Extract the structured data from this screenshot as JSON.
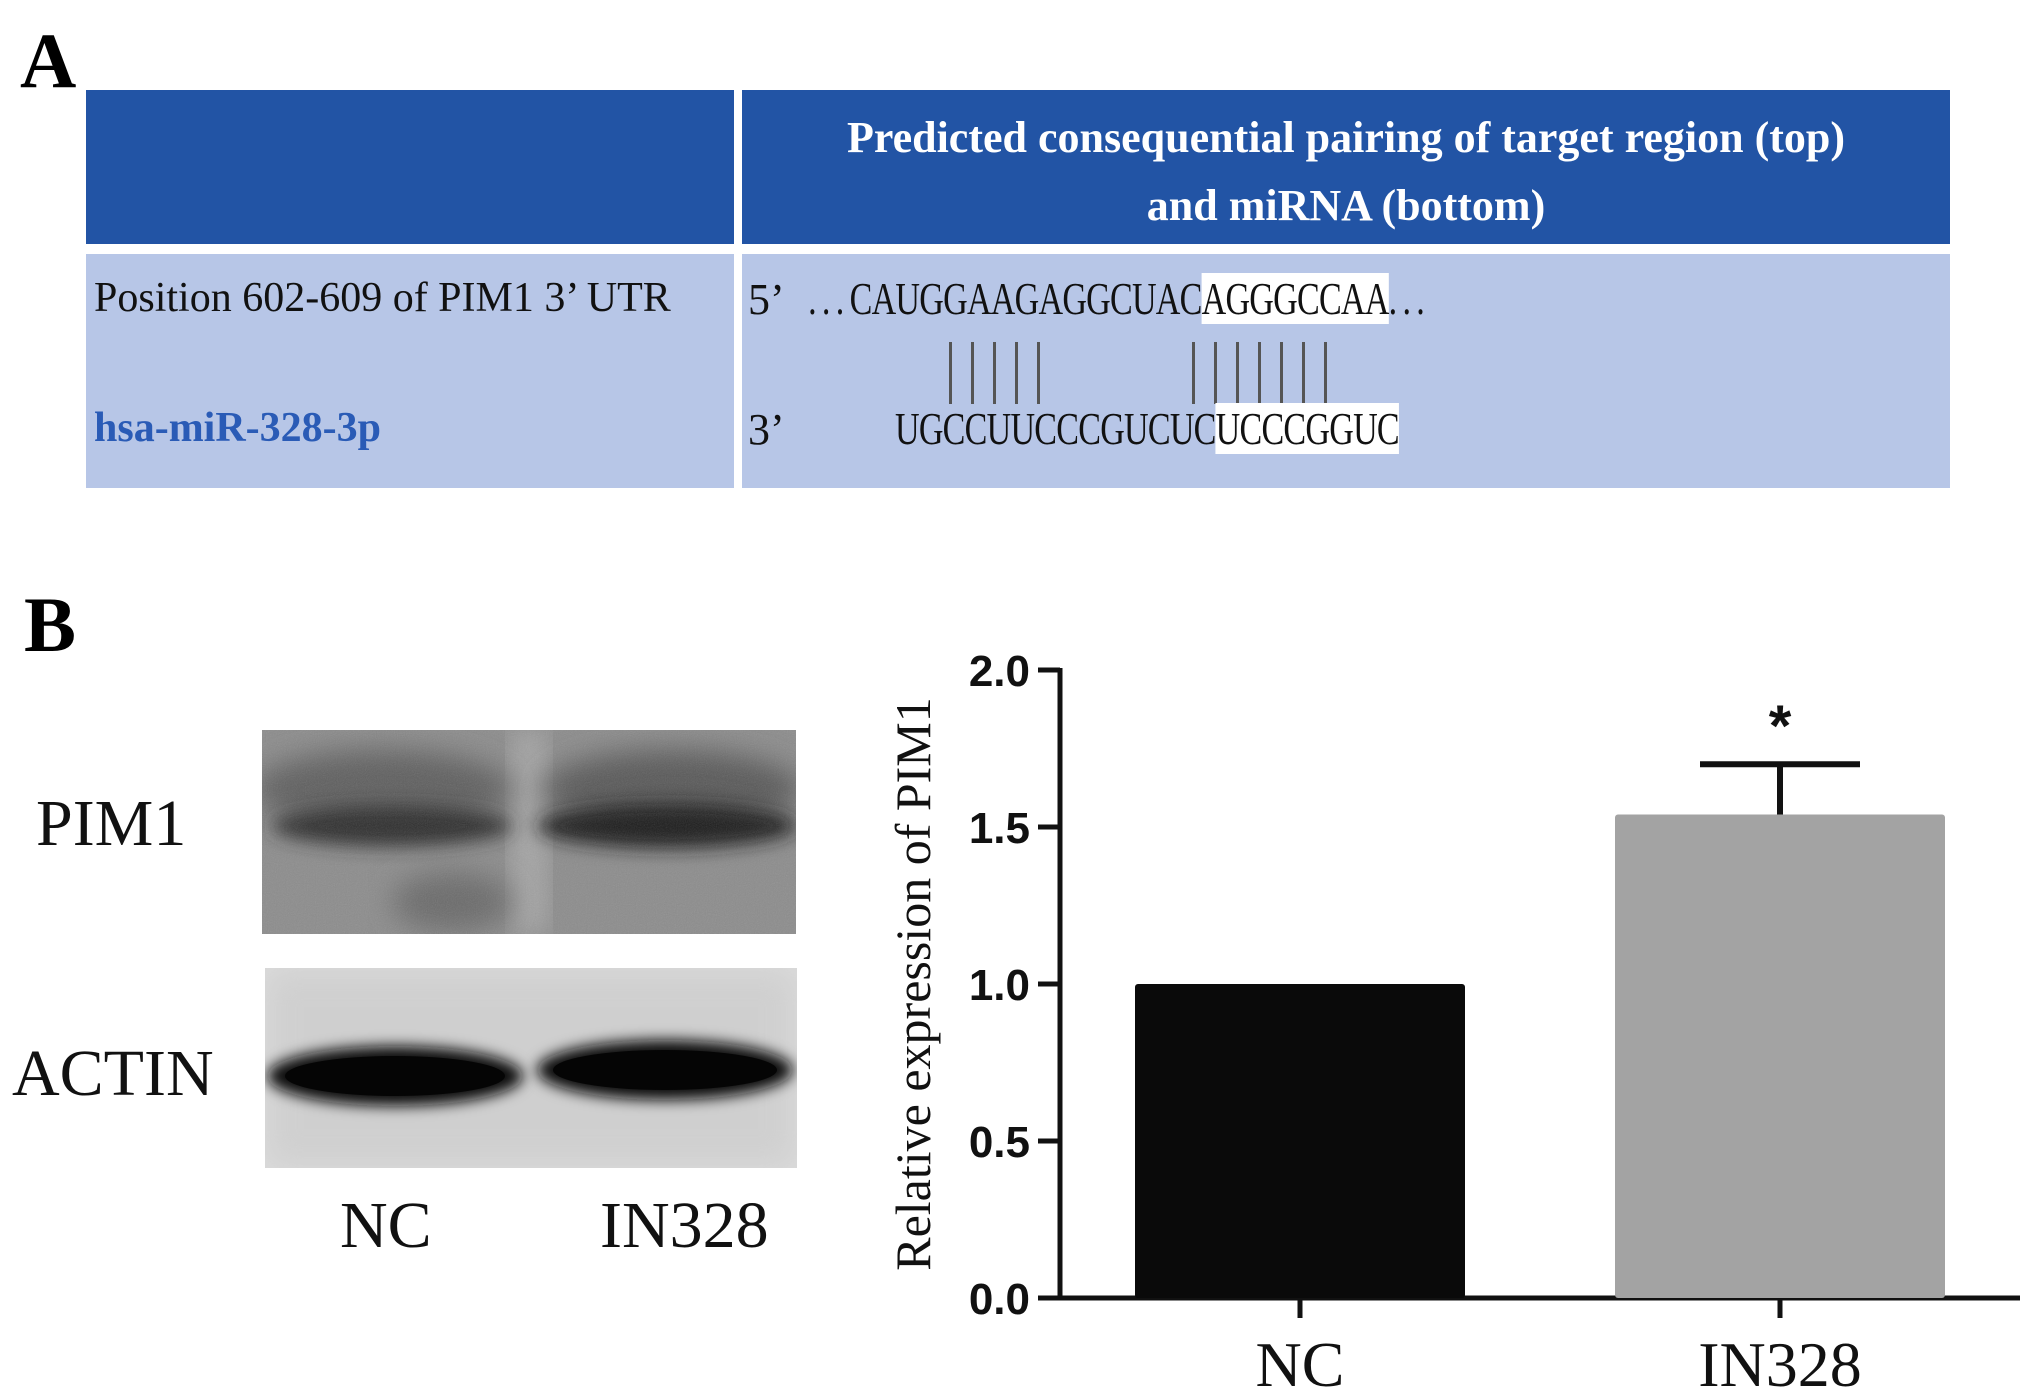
{
  "panel_a": {
    "letter": "A",
    "header": {
      "left": "",
      "right_line1": "Predicted consequential pairing of target region (top)",
      "right_line2": "and miRNA (bottom)"
    },
    "target": {
      "label": "Position 602-609 of PIM1 3’ UTR",
      "end": "5’",
      "lead": " . . . ",
      "seq_plain": "CAUGGAAGAGGCUAC",
      "seq_highlight": "AGGGCCAA",
      "trail": ". . ."
    },
    "mirna": {
      "label": "hsa-miR-328-3p",
      "end": "3’",
      "seq_plain": "UGCCUUCCCGUCUC",
      "seq_highlight": "UCCCGGUC"
    },
    "label_color": "#2a5bb6",
    "header_color": "#2254a5",
    "row_color": "#b7c6e7"
  },
  "panel_b": {
    "letter": "B",
    "blot": {
      "rows": [
        {
          "label": "PIM1"
        },
        {
          "label": "ACTIN"
        }
      ],
      "lanes": [
        "NC",
        "IN328"
      ]
    }
  },
  "chart_data": {
    "type": "bar",
    "categories": [
      "NC",
      "IN328"
    ],
    "values": [
      1.0,
      1.54
    ],
    "errors": [
      0,
      0.16
    ],
    "significance": [
      "",
      "*"
    ],
    "bar_colors": [
      "#0a0a0a",
      "#a3a3a3"
    ],
    "ylabel": "Relative expression of PIM1",
    "xlabel": "",
    "ylim": [
      0,
      2.0
    ],
    "yticks": [
      "0.0",
      "0.5",
      "1.0",
      "1.5",
      "2.0"
    ],
    "grid": false,
    "legend": "none"
  }
}
